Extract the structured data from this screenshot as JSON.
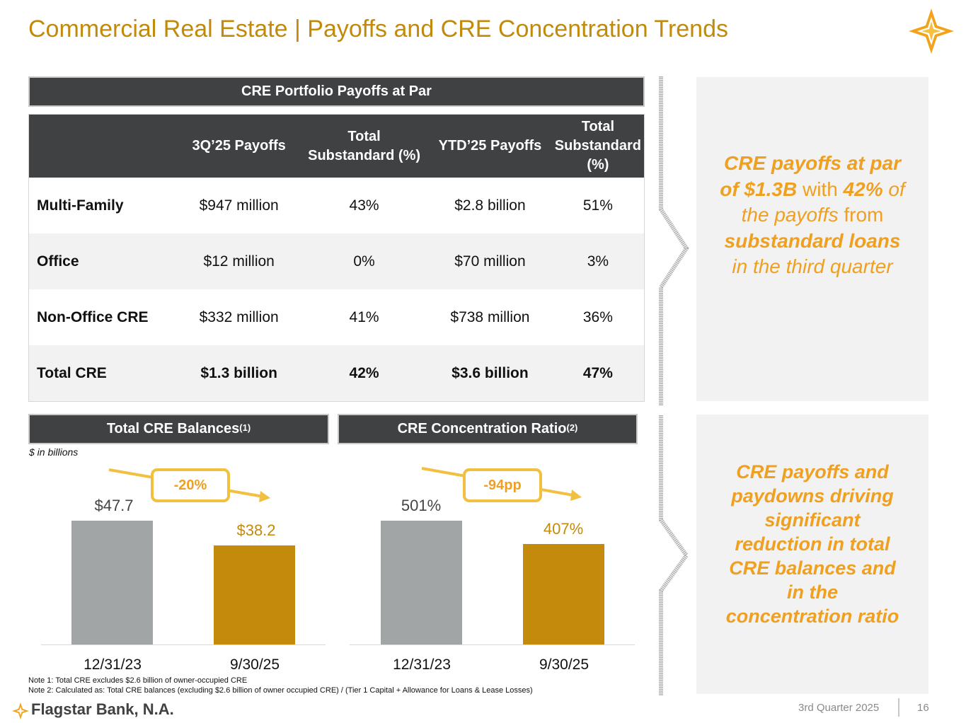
{
  "title": "Commercial Real Estate | Payoffs and CRE Concentration Trends",
  "payoffs_table": {
    "header": "CRE Portfolio Payoffs at Par",
    "columns": [
      "",
      "3Q’25 Payoffs",
      "Total Substandard (%)",
      "YTD’25 Payoffs",
      "Total Substandard (%)"
    ],
    "rows": [
      {
        "label": "Multi-Family",
        "q_payoffs": "$947 million",
        "q_sub": "43%",
        "ytd_payoffs": "$2.8 billion",
        "ytd_sub": "51%"
      },
      {
        "label": "Office",
        "q_payoffs": "$12 million",
        "q_sub": "0%",
        "ytd_payoffs": "$70 million",
        "ytd_sub": "3%"
      },
      {
        "label": "Non-Office CRE",
        "q_payoffs": "$332 million",
        "q_sub": "41%",
        "ytd_payoffs": "$738 million",
        "ytd_sub": "36%"
      },
      {
        "label": "Total CRE",
        "q_payoffs": "$1.3 billion",
        "q_sub": "42%",
        "ytd_payoffs": "$3.6 billion",
        "ytd_sub": "47%"
      }
    ]
  },
  "callout1": {
    "p1": "CRE payoffs at par of $1.3B",
    "p2": " with ",
    "p3": "42%",
    "p4": " of the payoffs",
    "p5": " from ",
    "p6": "substandard loans",
    "p7": " in the third quarter"
  },
  "callout2": "CRE payoffs and paydowns driving significant reduction in total CRE balances and in the concentration ratio",
  "balances_header": "Total CRE Balances",
  "balances_note_ref": "(1)",
  "units": "$ in billions",
  "ratio_header": "CRE Concentration Ratio",
  "ratio_note_ref": "(2)",
  "colors": {
    "gray": "#a2a5a6",
    "gold": "#c38a0b",
    "accent": "#f0a020"
  },
  "chart_data": [
    {
      "type": "bar",
      "title": "Total CRE Balances",
      "categories": [
        "12/31/23",
        "9/30/25"
      ],
      "values": [
        47.7,
        38.2
      ],
      "labels": [
        "$47.7",
        "$38.2"
      ],
      "change": "-20%",
      "ylim": [
        0,
        60
      ]
    },
    {
      "type": "bar",
      "title": "CRE Concentration Ratio",
      "categories": [
        "12/31/23",
        "9/30/25"
      ],
      "values": [
        501,
        407
      ],
      "labels": [
        "501%",
        "407%"
      ],
      "change": "-94pp",
      "ylim": [
        0,
        700
      ]
    }
  ],
  "notes": [
    "Note 1: Total CRE excludes $2.6 billion of owner-occupied CRE",
    "Note 2: Calculated as: Total CRE balances (excluding $2.6 billion of owner occupied CRE) / (Tier 1 Capital + Allowance for Loans & Lease Losses)"
  ],
  "footer": {
    "brand": "Flagstar Bank, N.A.",
    "period": "3rd Quarter 2025",
    "page": "16"
  }
}
